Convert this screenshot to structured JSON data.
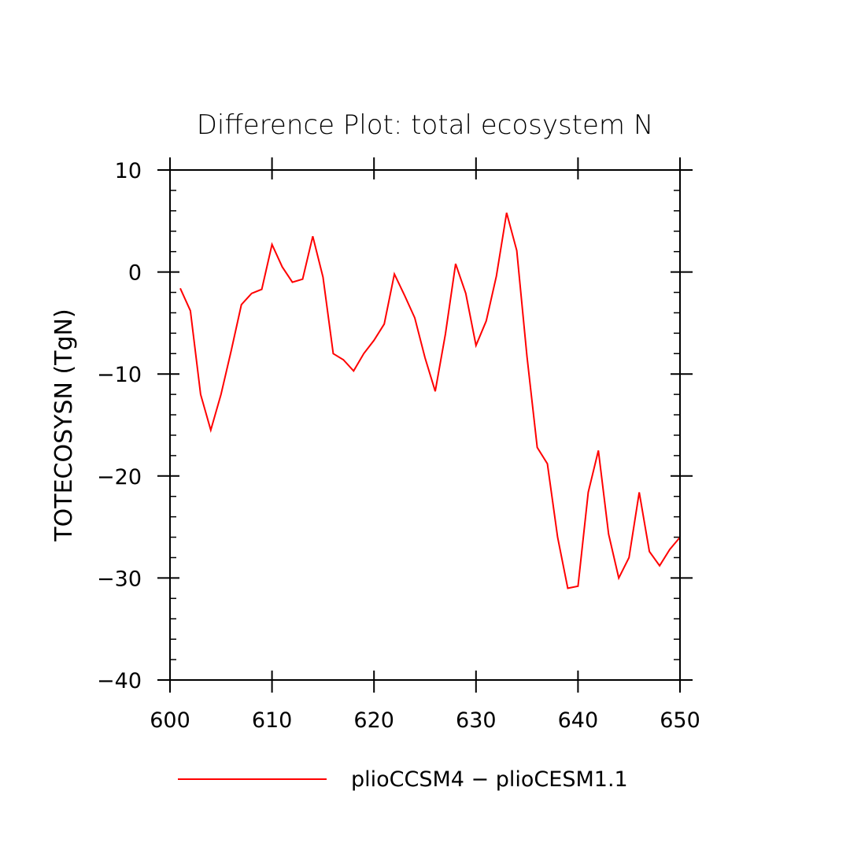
{
  "chart_data": {
    "type": "line",
    "title": "Difference Plot: total ecosystem N",
    "xlabel": "",
    "ylabel": "TOTECOSYSN   (TgN)",
    "xlim": [
      600,
      650
    ],
    "ylim": [
      -40,
      10
    ],
    "x_ticks": [
      600,
      610,
      620,
      630,
      640,
      650
    ],
    "x_tick_labels": [
      "600",
      "610",
      "620",
      "630",
      "640",
      "650"
    ],
    "y_ticks": [
      10,
      0,
      -10,
      -20,
      -30,
      -40
    ],
    "y_tick_labels": [
      "10",
      "0",
      "−10",
      "−20",
      "−30",
      "−40"
    ],
    "grid": false,
    "legend_position": "bottom",
    "series": [
      {
        "name": "plioCCSM4 − plioCESM1.1",
        "color": "#ff0000",
        "x": [
          601,
          602,
          603,
          604,
          605,
          606,
          607,
          608,
          609,
          610,
          611,
          612,
          613,
          614,
          615,
          616,
          617,
          618,
          619,
          620,
          621,
          622,
          623,
          624,
          625,
          626,
          627,
          628,
          629,
          630,
          631,
          632,
          633,
          634,
          635,
          636,
          637,
          638,
          639,
          640,
          641,
          642,
          643,
          644,
          645,
          646,
          647,
          648,
          649,
          650
        ],
        "y": [
          -1.6,
          -3.8,
          -12.0,
          -15.5,
          -12.0,
          -7.7,
          -3.2,
          -2.1,
          -1.7,
          2.7,
          0.5,
          -1.0,
          -0.7,
          3.5,
          -0.5,
          -8.0,
          -8.6,
          -9.7,
          -8.0,
          -6.7,
          -5.1,
          -0.2,
          -2.3,
          -4.5,
          -8.4,
          -11.7,
          -6.1,
          0.8,
          -2.1,
          -7.2,
          -4.8,
          -0.4,
          5.8,
          2.1,
          -8.3,
          -17.2,
          -18.8,
          -26.0,
          -31.0,
          -30.8,
          -21.6,
          -17.5,
          -25.7,
          -30.0,
          -28.0,
          -21.6,
          -27.4,
          -28.8,
          -27.2,
          -26.0
        ]
      }
    ]
  }
}
